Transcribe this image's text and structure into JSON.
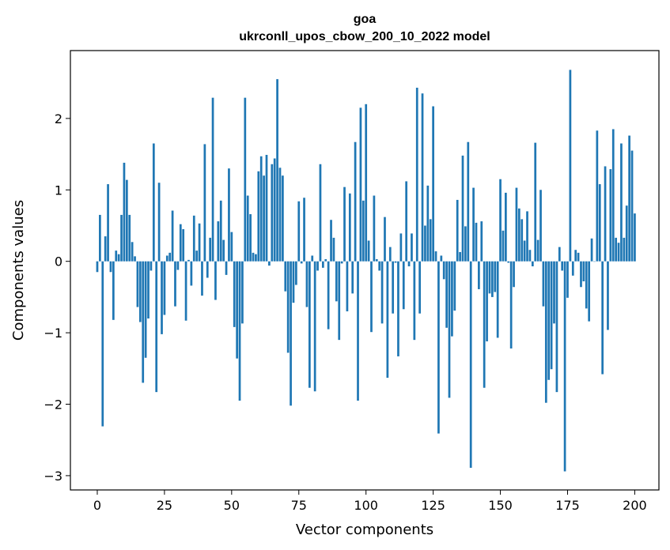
{
  "chart_data": {
    "type": "bar",
    "title": "goa",
    "subtitle": "ukrconll_upos_cbow_200_10_2022 model",
    "xlabel": "Vector components",
    "ylabel": "Components values",
    "xlim": [
      -10,
      209
    ],
    "ylim": [
      -3.2,
      2.95
    ],
    "xticks": [
      0,
      25,
      50,
      75,
      100,
      125,
      150,
      175,
      200
    ],
    "yticks": [
      -3,
      -2,
      -1,
      0,
      1,
      2
    ],
    "bar_color": "#1f77b4",
    "x_start": 0,
    "values": [
      -0.15,
      0.65,
      -2.31,
      0.35,
      1.08,
      -0.15,
      -0.82,
      0.15,
      0.1,
      0.65,
      1.38,
      1.14,
      0.65,
      0.27,
      0.07,
      -0.64,
      -0.85,
      -1.7,
      -1.35,
      -0.8,
      -0.13,
      1.65,
      -1.83,
      1.1,
      -1.02,
      -0.75,
      0.08,
      0.12,
      0.71,
      -0.63,
      -0.12,
      0.52,
      0.45,
      -0.83,
      0.02,
      -0.34,
      0.64,
      0.15,
      0.53,
      -0.48,
      1.64,
      -0.23,
      0.33,
      2.29,
      -0.54,
      0.56,
      0.85,
      0.3,
      -0.19,
      1.3,
      0.41,
      -0.92,
      -1.36,
      -1.95,
      -0.87,
      2.29,
      0.92,
      0.66,
      0.12,
      0.1,
      1.26,
      1.47,
      1.2,
      1.49,
      -0.06,
      1.36,
      1.44,
      2.55,
      1.31,
      1.2,
      -0.42,
      -1.28,
      -2.02,
      -0.58,
      -0.33,
      0.84,
      -0.03,
      0.89,
      -0.64,
      -1.77,
      0.08,
      -1.82,
      -0.13,
      1.36,
      -0.09,
      0.03,
      -0.95,
      0.58,
      0.33,
      -0.56,
      -1.1,
      -0.03,
      1.04,
      -0.7,
      0.95,
      -0.45,
      1.67,
      -1.95,
      2.15,
      0.85,
      2.2,
      0.29,
      -0.99,
      0.92,
      0.03,
      -0.13,
      -0.87,
      0.62,
      -1.63,
      0.2,
      -0.73,
      -0.02,
      -1.33,
      0.39,
      -0.67,
      1.12,
      -0.07,
      0.39,
      -1.1,
      2.43,
      -0.73,
      2.35,
      0.5,
      1.06,
      0.59,
      2.17,
      0.14,
      -2.41,
      0.08,
      -0.25,
      -0.93,
      -1.91,
      -1.05,
      -0.69,
      0.86,
      0.13,
      1.48,
      0.49,
      1.67,
      -2.89,
      1.03,
      0.54,
      -0.39,
      0.56,
      -1.77,
      -1.12,
      -0.45,
      -0.5,
      -0.43,
      -1.07,
      1.15,
      0.43,
      0.96,
      -0.02,
      -1.22,
      -0.36,
      1.03,
      0.74,
      0.59,
      0.29,
      0.7,
      0.16,
      -0.07,
      1.66,
      0.3,
      1.0,
      -0.63,
      -1.98,
      -1.66,
      -1.51,
      -0.87,
      -1.83,
      0.2,
      -0.13,
      -2.94,
      -0.51,
      2.68,
      -0.2,
      0.16,
      0.12,
      -0.36,
      -0.28,
      -0.66,
      -0.84,
      0.32,
      0.0,
      1.83,
      1.08,
      -1.58,
      1.33,
      -0.96,
      1.29,
      1.85,
      0.33,
      0.26,
      1.65,
      0.33,
      0.78,
      1.76,
      1.55,
      0.67
    ]
  }
}
